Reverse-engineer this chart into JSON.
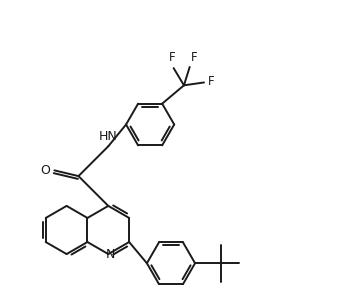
{
  "background_color": "#ffffff",
  "line_color": "#1a1a1a",
  "line_width": 1.4,
  "text_color": "#1a1a1a",
  "font_size": 8.5,
  "xlim": [
    -0.2,
    5.2
  ],
  "ylim": [
    -1.8,
    3.2
  ]
}
